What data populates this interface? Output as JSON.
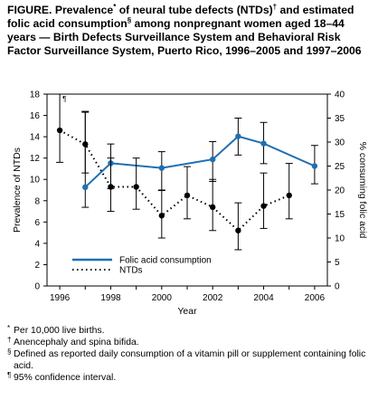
{
  "title": {
    "lead": "FIGURE. Prevalence",
    "m1": "*",
    "p1": " of neural tube defects (NTDs)",
    "m2": "†",
    "p2": " and estimated folic acid consumption",
    "m3": "§",
    "p3": " among nonpregnant women aged 18–44 years — Birth Defects Surveillance System and Behavioral Risk Factor Surveillance System, Puerto Rico, 1996–2005 and 1997–2006"
  },
  "chart_data": {
    "type": "line",
    "xlabel": "Year",
    "ylabel_left": "Prevalence of NTDs",
    "ylabel_right": "% consuming folic acid",
    "xlim": [
      1995.5,
      2006.5
    ],
    "x_ticks": [
      1996,
      1998,
      2000,
      2002,
      2004,
      2006
    ],
    "ylim_left": [
      0,
      18
    ],
    "y_ticks_left": [
      0,
      2,
      4,
      6,
      8,
      10,
      12,
      14,
      16,
      18
    ],
    "ylim_right": [
      0,
      40
    ],
    "y_ticks_right": [
      0,
      5,
      10,
      15,
      20,
      25,
      30,
      35,
      40
    ],
    "grid": false,
    "legend_position": "lower-left",
    "ci_marker": "¶",
    "series": [
      {
        "name": "Folic acid consumption",
        "axis": "right",
        "style": "solid",
        "color": "#1f6fb2",
        "x": [
          1997,
          1998,
          2000,
          2002,
          2003,
          2004,
          2006
        ],
        "y": [
          20.6,
          25.6,
          24.6,
          26.4,
          31.2,
          29.7,
          25.0
        ],
        "ci_low": [
          16.4,
          20.3,
          19.9,
          21.8,
          27.3,
          25.5,
          21.3
        ],
        "ci_high": [
          36.4,
          29.6,
          28.0,
          30.1,
          35.0,
          34.1,
          29.3
        ]
      },
      {
        "name": "NTDs",
        "axis": "left",
        "style": "dotted",
        "color": "#000000",
        "x": [
          1996,
          1997,
          1998,
          1999,
          2000,
          2001,
          2002,
          2003,
          2004,
          2005
        ],
        "y": [
          14.6,
          13.3,
          9.3,
          9.3,
          6.6,
          8.5,
          7.4,
          5.2,
          7.5,
          8.5
        ],
        "ci_low": [
          11.6,
          10.6,
          7.0,
          7.2,
          4.5,
          6.3,
          5.2,
          3.4,
          5.4,
          6.3
        ],
        "ci_high": [
          18.0,
          16.3,
          12.0,
          12.0,
          9.0,
          11.2,
          10.0,
          7.8,
          10.6,
          11.5
        ]
      }
    ]
  },
  "notes": [
    {
      "mark": "*",
      "text": "Per 10,000 live births."
    },
    {
      "mark": "†",
      "text": "Anencephaly and spina bifida."
    },
    {
      "mark": "§",
      "text": "Defined as reported daily consumption of a vitamin pill or supplement containing folic acid."
    },
    {
      "mark": "¶",
      "text": "95% confidence interval."
    }
  ]
}
